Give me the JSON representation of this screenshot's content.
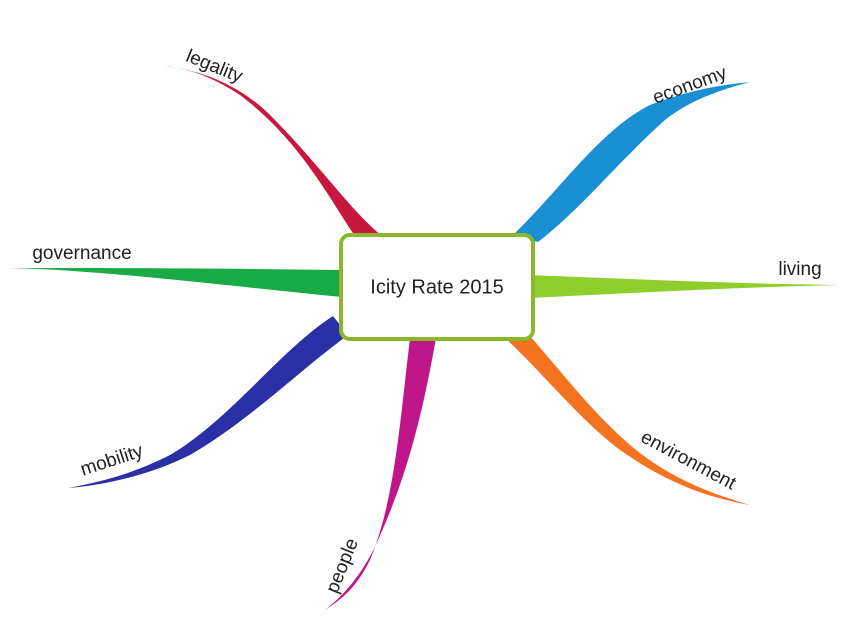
{
  "center": {
    "label": "Icity Rate 2015"
  },
  "branches": [
    {
      "label": "legality"
    },
    {
      "label": "economy"
    },
    {
      "label": "governance"
    },
    {
      "label": "living"
    },
    {
      "label": "mobility"
    },
    {
      "label": "people"
    },
    {
      "label": "environment"
    }
  ]
}
